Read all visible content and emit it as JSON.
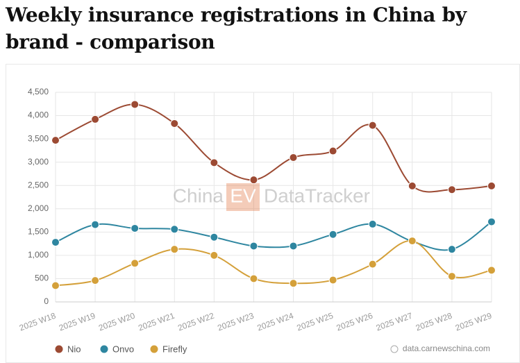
{
  "chart_data": {
    "type": "line",
    "title": "Weekly insurance registrations in China by brand - comparison",
    "categories": [
      "2025 W18",
      "2025 W19",
      "2025 W20",
      "2025 W21",
      "2025 W22",
      "2025 W23",
      "2025 W24",
      "2025 W25",
      "2025 W26",
      "2025 W27",
      "2025 W28",
      "2025 W29"
    ],
    "series": [
      {
        "name": "Nio",
        "color": "#9c4a33",
        "values": [
          3470,
          3920,
          4240,
          3830,
          2990,
          2620,
          3100,
          3240,
          3790,
          2490,
          2410,
          2490
        ]
      },
      {
        "name": "Onvo",
        "color": "#2e86a0",
        "values": [
          1280,
          1660,
          1580,
          1560,
          1390,
          1200,
          1200,
          1450,
          1670,
          1300,
          1130,
          1720
        ]
      },
      {
        "name": "Firefly",
        "color": "#d4a03a",
        "values": [
          350,
          460,
          830,
          1130,
          1000,
          500,
          400,
          470,
          810,
          1310,
          550,
          680
        ]
      }
    ],
    "ylim": [
      0,
      4500
    ],
    "yticks": [
      0,
      500,
      {
        "value": 1000,
        "label": "1,000"
      },
      {
        "value": 1500,
        "label": "1,500"
      },
      {
        "value": 2000,
        "label": "2,000"
      },
      {
        "value": 2500,
        "label": "2,500"
      },
      {
        "value": 3000,
        "label": "3,000"
      },
      {
        "value": 3500,
        "label": "3,500"
      },
      {
        "value": 4000,
        "label": "4,000"
      },
      {
        "value": 4500,
        "label": "4,500"
      }
    ],
    "grid": true,
    "smooth": true,
    "legend": "bottom-left",
    "watermark": {
      "left": "China",
      "badge": "EV",
      "right": "DataTracker"
    },
    "source": "data.carnewschina.com"
  }
}
